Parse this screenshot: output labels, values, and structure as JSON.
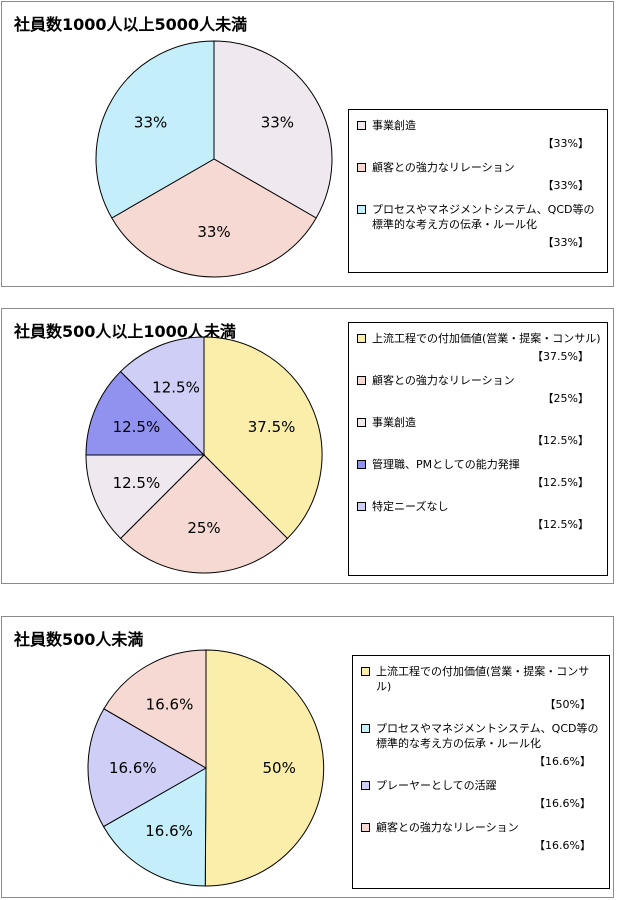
{
  "colors": {
    "pale_gray": "#efe8ee",
    "pale_pink": "#f6d9d3",
    "pale_cyan": "#c4eef9",
    "pale_yellow": "#fbeeaa",
    "indigo": "#9191f0",
    "lavender": "#cecef6"
  },
  "chart_data": [
    {
      "type": "pie",
      "title": "社員数1000人以上5000人未満",
      "start_angle_deg": 0,
      "slices": [
        {
          "label": "事業創造",
          "value": 33,
          "data_label": "33%",
          "legend_value": "【33%】",
          "color": "#efe8ee"
        },
        {
          "label": "顧客との強力なリレーション",
          "value": 33,
          "data_label": "33%",
          "legend_value": "【33%】",
          "color": "#f6d9d3"
        },
        {
          "label": "プロセスやマネジメントシステム、QCD等の標準的な考え方の伝承・ルール化",
          "value": 33,
          "data_label": "33%",
          "legend_value": "【33%】",
          "color": "#c4eef9"
        }
      ],
      "legend_placement": "right"
    },
    {
      "type": "pie",
      "title": "社員数500人以上1000人未満",
      "start_angle_deg": 0,
      "slices": [
        {
          "label": "上流工程での付加価値(営業・提案・コンサル)",
          "value": 37.5,
          "data_label": "37.5%",
          "legend_value": "【37.5%】",
          "color": "#fbeeaa"
        },
        {
          "label": "顧客との強力なリレーション",
          "value": 25,
          "data_label": "25%",
          "legend_value": "【25%】",
          "color": "#f6d9d3"
        },
        {
          "label": "事業創造",
          "value": 12.5,
          "data_label": "12.5%",
          "legend_value": "【12.5%】",
          "color": "#efe8ee"
        },
        {
          "label": "管理職、PMとしての能力発揮",
          "value": 12.5,
          "data_label": "12.5%",
          "legend_value": "【12.5%】",
          "color": "#9191f0"
        },
        {
          "label": "特定ニーズなし",
          "value": 12.5,
          "data_label": "12.5%",
          "legend_value": "【12.5%】",
          "color": "#cecef6"
        }
      ],
      "legend_placement": "right"
    },
    {
      "type": "pie",
      "title": "社員数500人未満",
      "start_angle_deg": 0,
      "slices": [
        {
          "label": "上流工程での付加価値(営業・提案・コンサル)",
          "value": 50,
          "data_label": "50%",
          "legend_value": "【50%】",
          "color": "#fbeeaa"
        },
        {
          "label": "プロセスやマネジメントシステム、QCD等の標準的な考え方の伝承・ルール化",
          "value": 16.6,
          "data_label": "16.6%",
          "legend_value": "【16.6%】",
          "color": "#c4eef9"
        },
        {
          "label": "プレーヤーとしての活躍",
          "value": 16.6,
          "data_label": "16.6%",
          "legend_value": "【16.6%】",
          "color": "#cecef6"
        },
        {
          "label": "顧客との強力なリレーション",
          "value": 16.6,
          "data_label": "16.6%",
          "legend_value": "【16.6%】",
          "color": "#f6d9d3"
        }
      ],
      "legend_placement": "right"
    }
  ]
}
